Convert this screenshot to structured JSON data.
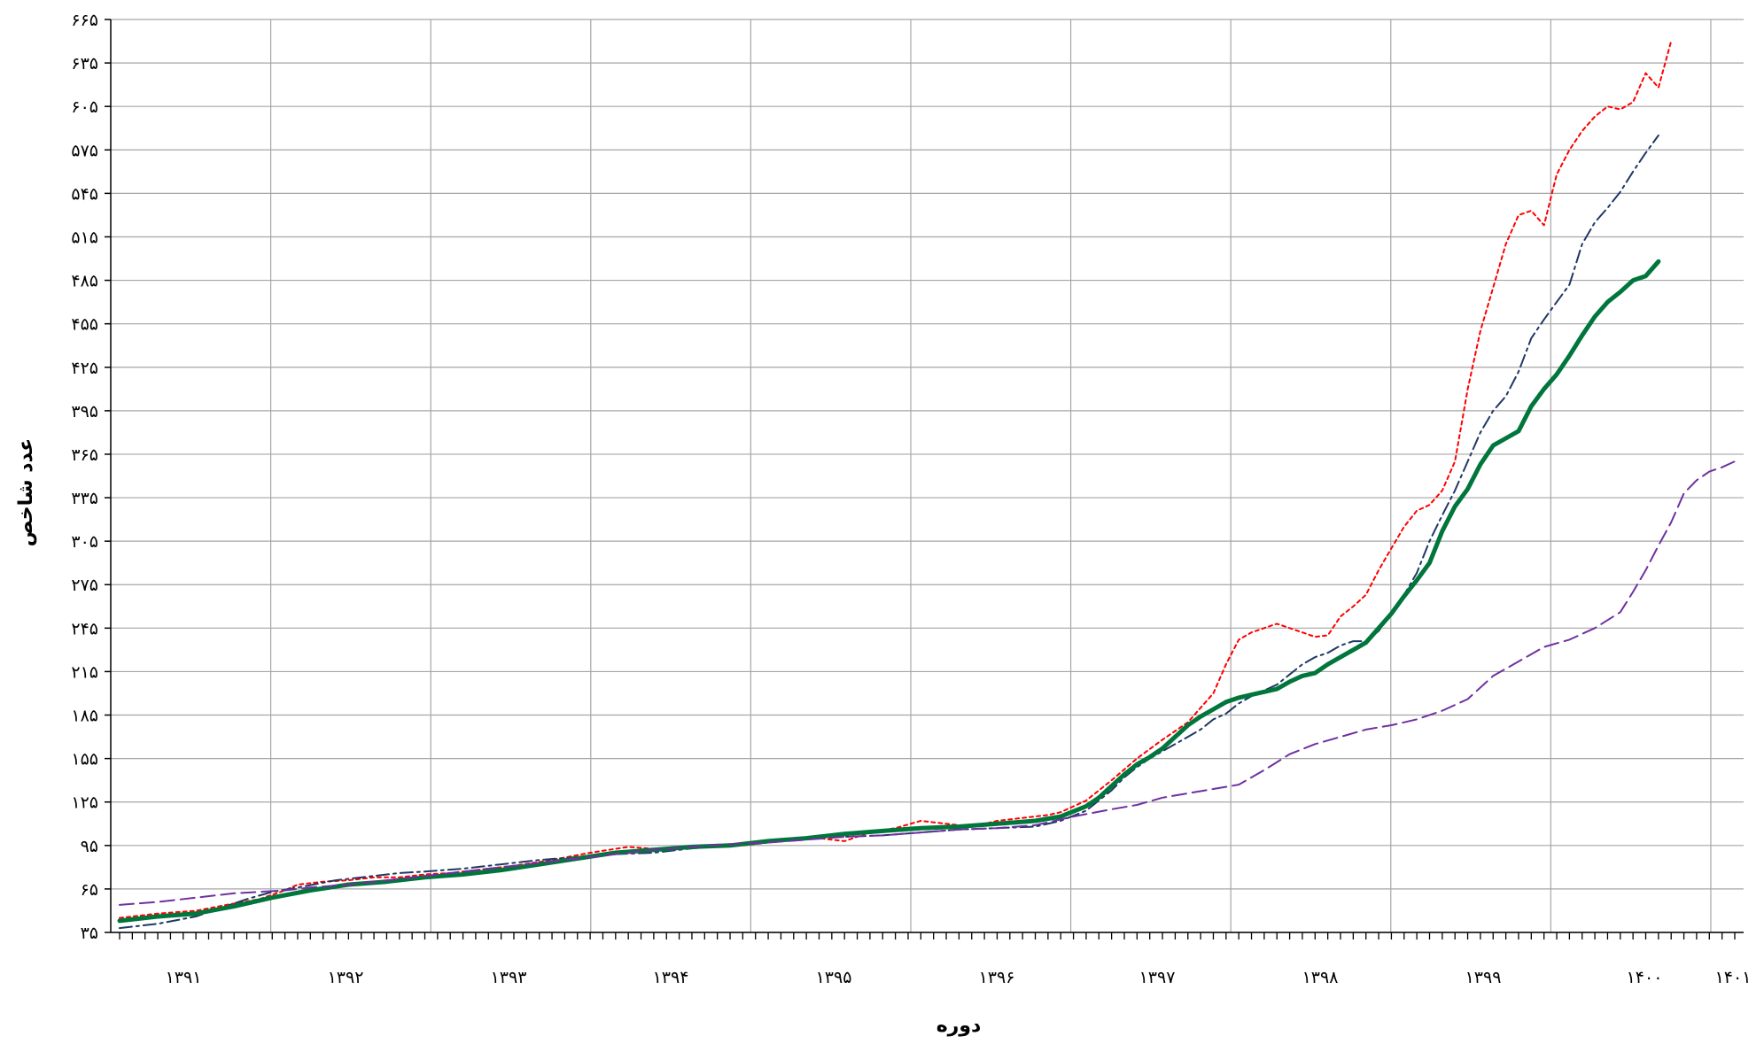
{
  "chart_data": {
    "type": "line",
    "title": "",
    "xlabel": "دوره",
    "ylabel": "عدد شاخص",
    "ylim": [
      35,
      665
    ],
    "yticks": [
      35,
      65,
      95,
      125,
      155,
      185,
      215,
      245,
      275,
      305,
      335,
      365,
      395,
      425,
      455,
      485,
      515,
      545,
      575,
      605,
      635,
      665
    ],
    "ytick_labels": [
      "۳۵",
      "۶۵",
      "۹۵",
      "۱۲۵",
      "۱۵۵",
      "۱۸۵",
      "۲۱۵",
      "۲۴۵",
      "۲۷۵",
      "۳۰۵",
      "۳۳۵",
      "۳۶۵",
      "۳۹۵",
      "۴۲۵",
      "۴۵۵",
      "۴۸۵",
      "۵۱۵",
      "۵۴۵",
      "۵۷۵",
      "۶۰۵",
      "۶۳۵",
      "۶۶۵"
    ],
    "xlim": [
      0,
      121
    ],
    "year_ticks": [
      {
        "label": "۱۳۹۱",
        "x": 5
      },
      {
        "label": "۱۳۹۲",
        "x": 17
      },
      {
        "label": "۱۳۹۳",
        "x": 29
      },
      {
        "label": "۱۳۹۴",
        "x": 41
      },
      {
        "label": "۱۳۹۵",
        "x": 53
      },
      {
        "label": "۱۳۹۶",
        "x": 65
      },
      {
        "label": "۱۳۹۷",
        "x": 77
      },
      {
        "label": "۱۳۹۸",
        "x": 89
      },
      {
        "label": "۱۳۹۹",
        "x": 101
      },
      {
        "label": "۱۴۰۰",
        "x": 113
      },
      {
        "label": "۱۴۰۱",
        "x": 120
      }
    ],
    "gridlines_x": [
      12,
      24,
      36,
      48,
      60,
      72,
      84,
      96,
      108,
      120
    ],
    "minor_ticks_per_year": 12,
    "grid": true,
    "series": [
      {
        "style": "dotted",
        "color": "#ff0000",
        "points": [
          [
            0,
            45
          ],
          [
            3,
            48
          ],
          [
            6,
            50
          ],
          [
            9,
            55
          ],
          [
            11,
            58
          ],
          [
            13,
            64
          ],
          [
            14,
            68
          ],
          [
            16,
            70
          ],
          [
            18,
            71
          ],
          [
            20,
            73
          ],
          [
            22,
            73
          ],
          [
            24,
            75
          ],
          [
            26,
            76
          ],
          [
            28,
            78
          ],
          [
            31,
            81
          ],
          [
            34,
            85
          ],
          [
            37,
            90
          ],
          [
            40,
            94
          ],
          [
            43,
            92
          ],
          [
            46,
            94
          ],
          [
            49,
            95
          ],
          [
            52,
            98
          ],
          [
            55,
            100
          ],
          [
            57,
            98
          ],
          [
            59,
            104
          ],
          [
            61,
            107
          ],
          [
            63,
            112
          ],
          [
            65,
            110
          ],
          [
            67,
            108
          ],
          [
            69,
            112
          ],
          [
            71,
            114
          ],
          [
            73,
            116
          ],
          [
            74,
            118
          ],
          [
            76,
            126
          ],
          [
            78,
            140
          ],
          [
            80,
            155
          ],
          [
            82,
            168
          ],
          [
            84,
            180
          ],
          [
            85,
            190
          ],
          [
            86,
            200
          ],
          [
            87,
            220
          ],
          [
            88,
            237
          ],
          [
            89,
            242
          ],
          [
            90,
            245
          ],
          [
            91,
            248
          ],
          [
            92,
            245
          ],
          [
            93,
            242
          ],
          [
            94,
            239
          ],
          [
            95,
            240
          ],
          [
            96,
            253
          ],
          [
            97,
            260
          ],
          [
            98,
            268
          ],
          [
            99,
            285
          ],
          [
            100,
            300
          ],
          [
            101,
            315
          ],
          [
            102,
            326
          ],
          [
            103,
            330
          ],
          [
            104,
            340
          ],
          [
            105,
            360
          ],
          [
            106,
            410
          ],
          [
            107,
            450
          ],
          [
            108,
            480
          ],
          [
            109,
            510
          ],
          [
            110,
            530
          ],
          [
            111,
            533
          ],
          [
            112,
            523
          ],
          [
            113,
            558
          ],
          [
            114,
            575
          ],
          [
            115,
            588
          ],
          [
            116,
            598
          ],
          [
            117,
            605
          ],
          [
            118,
            603
          ],
          [
            119,
            608
          ],
          [
            120,
            628
          ],
          [
            121,
            618
          ],
          [
            122,
            650
          ]
        ]
      },
      {
        "style": "dashdot",
        "color": "#1f3864",
        "points": [
          [
            0,
            38
          ],
          [
            3,
            41
          ],
          [
            6,
            46
          ],
          [
            8,
            52
          ],
          [
            10,
            58
          ],
          [
            12,
            63
          ],
          [
            14,
            66
          ],
          [
            17,
            71
          ],
          [
            20,
            74
          ],
          [
            22,
            76
          ],
          [
            24,
            77
          ],
          [
            27,
            79
          ],
          [
            30,
            82
          ],
          [
            33,
            85
          ],
          [
            36,
            87
          ],
          [
            39,
            89
          ],
          [
            42,
            90
          ],
          [
            45,
            93
          ],
          [
            48,
            95
          ],
          [
            51,
            98
          ],
          [
            54,
            100
          ],
          [
            57,
            101
          ],
          [
            60,
            102
          ],
          [
            63,
            104
          ],
          [
            66,
            106
          ],
          [
            69,
            107
          ],
          [
            72,
            108
          ],
          [
            74,
            112
          ],
          [
            76,
            119
          ],
          [
            78,
            133
          ],
          [
            79,
            142
          ],
          [
            80,
            149
          ],
          [
            81,
            155
          ],
          [
            82,
            160
          ],
          [
            83,
            165
          ],
          [
            84,
            170
          ],
          [
            85,
            175
          ],
          [
            86,
            182
          ],
          [
            87,
            186
          ],
          [
            88,
            193
          ],
          [
            89,
            198
          ],
          [
            90,
            202
          ],
          [
            91,
            206
          ],
          [
            92,
            213
          ],
          [
            93,
            220
          ],
          [
            94,
            225
          ],
          [
            95,
            228
          ],
          [
            96,
            233
          ],
          [
            97,
            236
          ],
          [
            98,
            236
          ],
          [
            99,
            243
          ],
          [
            100,
            255
          ],
          [
            101,
            268
          ],
          [
            102,
            283
          ],
          [
            103,
            305
          ],
          [
            104,
            323
          ],
          [
            105,
            340
          ],
          [
            106,
            360
          ],
          [
            107,
            380
          ],
          [
            108,
            395
          ],
          [
            109,
            405
          ],
          [
            110,
            422
          ],
          [
            111,
            445
          ],
          [
            112,
            458
          ],
          [
            113,
            470
          ],
          [
            114,
            482
          ],
          [
            115,
            510
          ],
          [
            116,
            525
          ],
          [
            117,
            535
          ],
          [
            118,
            546
          ],
          [
            119,
            560
          ],
          [
            120,
            573
          ],
          [
            121,
            585
          ]
        ]
      },
      {
        "style": "solid",
        "color": "#00763c",
        "points": [
          [
            0,
            43
          ],
          [
            3,
            46
          ],
          [
            6,
            48
          ],
          [
            9,
            53
          ],
          [
            12,
            59
          ],
          [
            15,
            64
          ],
          [
            18,
            68
          ],
          [
            21,
            70
          ],
          [
            24,
            73
          ],
          [
            27,
            75
          ],
          [
            30,
            78
          ],
          [
            33,
            82
          ],
          [
            36,
            86
          ],
          [
            39,
            90
          ],
          [
            42,
            92
          ],
          [
            45,
            94
          ],
          [
            48,
            95
          ],
          [
            51,
            98
          ],
          [
            54,
            100
          ],
          [
            57,
            103
          ],
          [
            60,
            105
          ],
          [
            63,
            107
          ],
          [
            66,
            108
          ],
          [
            69,
            110
          ],
          [
            72,
            112
          ],
          [
            74,
            115
          ],
          [
            76,
            122
          ],
          [
            77,
            128
          ],
          [
            78,
            136
          ],
          [
            79,
            144
          ],
          [
            80,
            151
          ],
          [
            81,
            156
          ],
          [
            82,
            162
          ],
          [
            83,
            170
          ],
          [
            84,
            178
          ],
          [
            85,
            184
          ],
          [
            86,
            189
          ],
          [
            87,
            194
          ],
          [
            88,
            197
          ],
          [
            89,
            199
          ],
          [
            90,
            201
          ],
          [
            91,
            203
          ],
          [
            92,
            208
          ],
          [
            93,
            212
          ],
          [
            94,
            214
          ],
          [
            95,
            220
          ],
          [
            96,
            225
          ],
          [
            97,
            230
          ],
          [
            98,
            235
          ],
          [
            99,
            245
          ],
          [
            100,
            255
          ],
          [
            101,
            267
          ],
          [
            102,
            278
          ],
          [
            103,
            290
          ],
          [
            104,
            312
          ],
          [
            105,
            329
          ],
          [
            106,
            341
          ],
          [
            107,
            358
          ],
          [
            108,
            371
          ],
          [
            109,
            376
          ],
          [
            110,
            381
          ],
          [
            111,
            398
          ],
          [
            112,
            410
          ],
          [
            113,
            420
          ],
          [
            114,
            433
          ],
          [
            115,
            447
          ],
          [
            116,
            460
          ],
          [
            117,
            470
          ],
          [
            118,
            477
          ],
          [
            119,
            485
          ],
          [
            120,
            488
          ],
          [
            121,
            498
          ]
        ]
      },
      {
        "style": "dashed",
        "color": "#7030a0",
        "points": [
          [
            0,
            54
          ],
          [
            3,
            56
          ],
          [
            6,
            59
          ],
          [
            9,
            62
          ],
          [
            11,
            63
          ],
          [
            13,
            64
          ],
          [
            15,
            66
          ],
          [
            18,
            68
          ],
          [
            21,
            71
          ],
          [
            24,
            74
          ],
          [
            27,
            77
          ],
          [
            30,
            80
          ],
          [
            33,
            83
          ],
          [
            36,
            86
          ],
          [
            39,
            89
          ],
          [
            42,
            92
          ],
          [
            45,
            94
          ],
          [
            48,
            96
          ],
          [
            51,
            97
          ],
          [
            54,
            99
          ],
          [
            57,
            101
          ],
          [
            60,
            102
          ],
          [
            63,
            104
          ],
          [
            66,
            106
          ],
          [
            69,
            107
          ],
          [
            72,
            109
          ],
          [
            75,
            115
          ],
          [
            78,
            120
          ],
          [
            80,
            123
          ],
          [
            82,
            128
          ],
          [
            84,
            131
          ],
          [
            86,
            134
          ],
          [
            88,
            137
          ],
          [
            90,
            147
          ],
          [
            92,
            158
          ],
          [
            94,
            165
          ],
          [
            96,
            170
          ],
          [
            98,
            175
          ],
          [
            100,
            178
          ],
          [
            102,
            182
          ],
          [
            104,
            188
          ],
          [
            106,
            196
          ],
          [
            108,
            212
          ],
          [
            110,
            222
          ],
          [
            112,
            232
          ],
          [
            114,
            237
          ],
          [
            116,
            245
          ],
          [
            118,
            256
          ],
          [
            119,
            270
          ],
          [
            120,
            285
          ],
          [
            121,
            302
          ],
          [
            122,
            318
          ],
          [
            123,
            338
          ],
          [
            124,
            347
          ],
          [
            125,
            353
          ],
          [
            126,
            356
          ],
          [
            127,
            360
          ]
        ]
      }
    ]
  }
}
